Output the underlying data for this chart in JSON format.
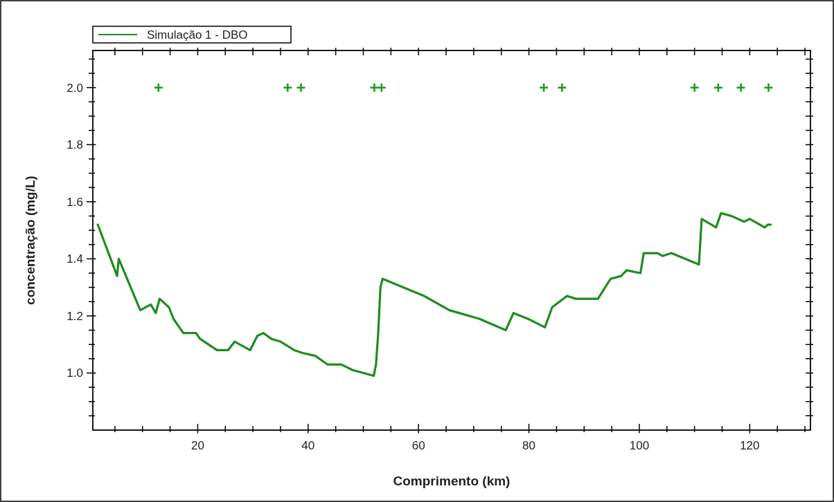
{
  "chart_data": {
    "type": "line",
    "xlabel": "Comprimento (km)",
    "ylabel": "concentração (mg/L)",
    "xlim": [
      1,
      131
    ],
    "ylim": [
      0.8,
      2.13
    ],
    "xticks": [
      {
        "value": 5,
        "label": null
      },
      {
        "value": 10,
        "label": null
      },
      {
        "value": 15,
        "label": null
      },
      20,
      {
        "value": 25,
        "label": null
      },
      {
        "value": 30,
        "label": null
      },
      {
        "value": 35,
        "label": null
      },
      40,
      {
        "value": 45,
        "label": null
      },
      {
        "value": 50,
        "label": null
      },
      {
        "value": 55,
        "label": null
      },
      60,
      {
        "value": 65,
        "label": null
      },
      {
        "value": 70,
        "label": null
      },
      {
        "value": 75,
        "label": null
      },
      80,
      {
        "value": 85,
        "label": null
      },
      {
        "value": 90,
        "label": null
      },
      {
        "value": 95,
        "label": null
      },
      100,
      {
        "value": 105,
        "label": null
      },
      {
        "value": 110,
        "label": null
      },
      {
        "value": 115,
        "label": null
      },
      120,
      {
        "value": 125,
        "label": null
      },
      {
        "value": 130,
        "label": null
      }
    ],
    "yticks": [
      {
        "value": 0.85,
        "label": null
      },
      {
        "value": 0.9,
        "label": null
      },
      {
        "value": 0.95,
        "label": null
      },
      {
        "value": 1.0,
        "label": "1.0"
      },
      {
        "value": 1.05,
        "label": null
      },
      {
        "value": 1.1,
        "label": null
      },
      {
        "value": 1.15,
        "label": null
      },
      {
        "value": 1.2,
        "label": "1.2"
      },
      {
        "value": 1.25,
        "label": null
      },
      {
        "value": 1.3,
        "label": null
      },
      {
        "value": 1.35,
        "label": null
      },
      {
        "value": 1.4,
        "label": "1.4"
      },
      {
        "value": 1.45,
        "label": null
      },
      {
        "value": 1.5,
        "label": null
      },
      {
        "value": 1.55,
        "label": null
      },
      {
        "value": 1.6,
        "label": "1.6"
      },
      {
        "value": 1.65,
        "label": null
      },
      {
        "value": 1.7,
        "label": null
      },
      {
        "value": 1.75,
        "label": null
      },
      {
        "value": 1.8,
        "label": "1.8"
      },
      {
        "value": 1.85,
        "label": null
      },
      {
        "value": 1.9,
        "label": null
      },
      {
        "value": 1.95,
        "label": null
      },
      {
        "value": 2.0,
        "label": "2.0"
      },
      {
        "value": 2.05,
        "label": null
      },
      {
        "value": 2.1,
        "label": null
      }
    ],
    "grid": false,
    "legend": "top left",
    "line_style": "solid",
    "series": [
      {
        "name": "Simulação 1 - DBO",
        "type": "line",
        "color": "#1f8c1f",
        "marker": "none",
        "x": [
          1.9,
          5.4,
          5.7,
          9.6,
          11.5,
          12.4,
          13.1,
          14.8,
          15.6,
          17.4,
          19.7,
          20.4,
          23.5,
          25.5,
          26.7,
          29.5,
          30.8,
          31.9,
          33.3,
          35,
          37.5,
          39,
          41.3,
          43.5,
          46,
          48.1,
          51.9,
          52.3,
          52.7,
          53.1,
          53.5,
          61.0,
          65.6,
          71.0,
          75.8,
          77.2,
          79.8,
          82.9,
          84.2,
          86.9,
          88.5,
          92.5,
          94.8,
          96.7,
          97.7,
          100.2,
          100.8,
          103.3,
          104.2,
          105.8,
          108.3,
          110.8,
          111.3,
          113.9,
          114.8,
          116.7,
          119,
          120,
          122.7,
          123.3,
          123.8
        ],
        "values": [
          1.52,
          1.34,
          1.4,
          1.22,
          1.24,
          1.21,
          1.26,
          1.23,
          1.19,
          1.14,
          1.14,
          1.12,
          1.08,
          1.08,
          1.11,
          1.08,
          1.13,
          1.14,
          1.12,
          1.11,
          1.08,
          1.07,
          1.06,
          1.03,
          1.03,
          1.01,
          0.99,
          1.03,
          1.14,
          1.3,
          1.33,
          1.27,
          1.22,
          1.19,
          1.15,
          1.21,
          1.19,
          1.16,
          1.23,
          1.27,
          1.26,
          1.26,
          1.33,
          1.34,
          1.36,
          1.35,
          1.42,
          1.42,
          1.41,
          1.42,
          1.4,
          1.38,
          1.54,
          1.51,
          1.56,
          1.55,
          1.53,
          1.54,
          1.51,
          1.52,
          1.52
        ]
      },
      {
        "type": "scatter",
        "color": "#1a9a1a",
        "marker": "cross",
        "x": [
          12.9,
          36.3,
          38.7,
          52.0,
          53.3,
          82.7,
          86.0,
          110.0,
          114.3,
          118.4,
          123.4
        ],
        "values": [
          2.0,
          2.0,
          2.0,
          2.0,
          2.0,
          2.0,
          2.0,
          2.0,
          2.0,
          2.0,
          2.0
        ]
      }
    ]
  }
}
